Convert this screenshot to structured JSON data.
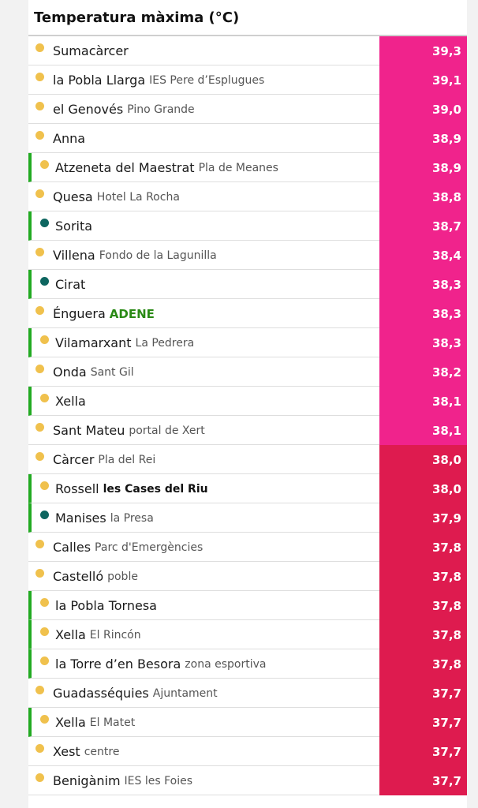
{
  "table": {
    "title": "Temperatura màxima (°C)",
    "colors": {
      "pink": "#f0238c",
      "crimson": "#de1b4f",
      "station_border": "#22aa22",
      "dot_sun": "#f0c14d",
      "dot_teal": "#0e6660"
    },
    "rows": [
      {
        "name": "Sumacàrcer",
        "sub": "",
        "value": "39,3",
        "dot": "sun-icon",
        "green": false,
        "sub_style": "",
        "band": "pink"
      },
      {
        "name": "la Pobla Llarga",
        "sub": "IES Pere d’Esplugues",
        "value": "39,1",
        "dot": "sun-icon",
        "green": false,
        "sub_style": "",
        "band": "pink"
      },
      {
        "name": "el Genovés",
        "sub": "Pino Grande",
        "value": "39,0",
        "dot": "sun-icon",
        "green": false,
        "sub_style": "",
        "band": "pink"
      },
      {
        "name": "Anna",
        "sub": "",
        "value": "38,9",
        "dot": "sun-icon",
        "green": false,
        "sub_style": "",
        "band": "pink"
      },
      {
        "name": "Atzeneta del Maestrat",
        "sub": "Pla de Meanes",
        "value": "38,9",
        "dot": "sun-icon",
        "green": true,
        "sub_style": "",
        "band": "pink"
      },
      {
        "name": "Quesa",
        "sub": "Hotel La Rocha",
        "value": "38,8",
        "dot": "sun-icon",
        "green": false,
        "sub_style": "",
        "band": "pink"
      },
      {
        "name": "Sorita",
        "sub": "",
        "value": "38,7",
        "dot": "teal-dot-icon",
        "green": true,
        "sub_style": "",
        "band": "pink"
      },
      {
        "name": "Villena",
        "sub": "Fondo de la Lagunilla",
        "value": "38,4",
        "dot": "sun-icon",
        "green": false,
        "sub_style": "",
        "band": "pink"
      },
      {
        "name": "Cirat",
        "sub": "",
        "value": "38,3",
        "dot": "teal-dot-icon",
        "green": true,
        "sub_style": "",
        "band": "pink"
      },
      {
        "name": "Énguera",
        "sub": "ADENE",
        "value": "38,3",
        "dot": "sun-icon",
        "green": false,
        "sub_style": "greenbold",
        "band": "pink"
      },
      {
        "name": "Vilamarxant",
        "sub": "La Pedrera",
        "value": "38,3",
        "dot": "sun-icon",
        "green": true,
        "sub_style": "",
        "band": "pink"
      },
      {
        "name": "Onda",
        "sub": "Sant Gil",
        "value": "38,2",
        "dot": "sun-icon",
        "green": false,
        "sub_style": "",
        "band": "pink"
      },
      {
        "name": "Xella",
        "sub": "",
        "value": "38,1",
        "dot": "sun-icon",
        "green": true,
        "sub_style": "",
        "band": "pink"
      },
      {
        "name": "Sant Mateu",
        "sub": "portal de Xert",
        "value": "38,1",
        "dot": "sun-icon",
        "green": false,
        "sub_style": "",
        "band": "pink"
      },
      {
        "name": "Càrcer",
        "sub": "Pla del Rei",
        "value": "38,0",
        "dot": "sun-icon",
        "green": false,
        "sub_style": "",
        "band": "crimson"
      },
      {
        "name": "Rossell",
        "sub": "les Cases del Riu",
        "value": "38,0",
        "dot": "sun-icon",
        "green": true,
        "sub_style": "bold",
        "band": "crimson"
      },
      {
        "name": "Manises",
        "sub": "la Presa",
        "value": "37,9",
        "dot": "teal-dot-icon",
        "green": true,
        "sub_style": "",
        "band": "crimson"
      },
      {
        "name": "Calles",
        "sub": "Parc d'Emergències",
        "value": "37,8",
        "dot": "sun-icon",
        "green": false,
        "sub_style": "",
        "band": "crimson"
      },
      {
        "name": "Castelló",
        "sub": "poble",
        "value": "37,8",
        "dot": "sun-icon",
        "green": false,
        "sub_style": "",
        "band": "crimson"
      },
      {
        "name": "la Pobla Tornesa",
        "sub": "",
        "value": "37,8",
        "dot": "sun-icon",
        "green": true,
        "sub_style": "",
        "band": "crimson"
      },
      {
        "name": "Xella",
        "sub": "El Rincón",
        "value": "37,8",
        "dot": "sun-icon",
        "green": true,
        "sub_style": "",
        "band": "crimson"
      },
      {
        "name": "la Torre d’en Besora",
        "sub": "zona esportiva",
        "value": "37,8",
        "dot": "sun-icon",
        "green": true,
        "sub_style": "",
        "band": "crimson"
      },
      {
        "name": "Guadasséquies",
        "sub": "Ajuntament",
        "value": "37,7",
        "dot": "sun-icon",
        "green": false,
        "sub_style": "",
        "band": "crimson"
      },
      {
        "name": "Xella",
        "sub": "El Matet",
        "value": "37,7",
        "dot": "sun-icon",
        "green": true,
        "sub_style": "",
        "band": "crimson"
      },
      {
        "name": "Xest",
        "sub": "centre",
        "value": "37,7",
        "dot": "sun-icon",
        "green": false,
        "sub_style": "",
        "band": "crimson"
      },
      {
        "name": "Benigànim",
        "sub": "IES les Foies",
        "value": "37,7",
        "dot": "sun-icon",
        "green": false,
        "sub_style": "",
        "band": "crimson"
      }
    ]
  }
}
